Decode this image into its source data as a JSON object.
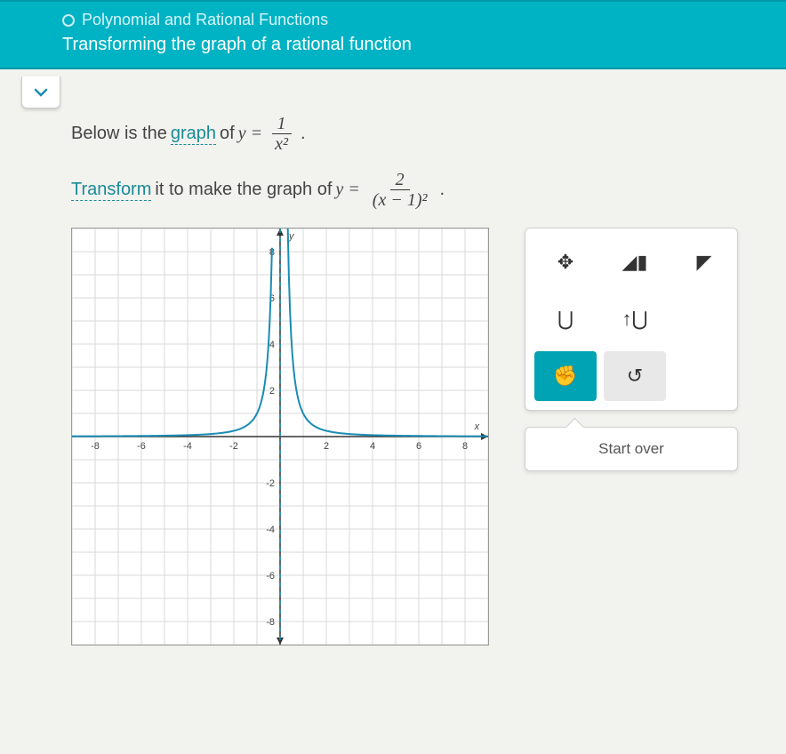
{
  "header": {
    "breadcrumb": "Polynomial and Rational Functions",
    "title": "Transforming the graph of a rational function",
    "accent_color": "#00b3c4"
  },
  "prompt": {
    "line1_pre": "Below is the ",
    "line1_link": "graph",
    "line1_mid": " of ",
    "eq1_lhs": "y =",
    "eq1_num": "1",
    "eq1_den": "x²",
    "line1_end": ".",
    "line2_link": "Transform",
    "line2_mid": " it to make the graph of ",
    "eq2_lhs": "y =",
    "eq2_num": "2",
    "eq2_den": "(x − 1)²",
    "line2_end": "."
  },
  "graph": {
    "xmin": -9,
    "xmax": 9,
    "ymin": -9,
    "ymax": 9,
    "xticks": [
      -8,
      -6,
      -4,
      -2,
      2,
      4,
      6,
      8
    ],
    "yticks": [
      -8,
      -6,
      -4,
      -2,
      2,
      4,
      6,
      8
    ],
    "grid_color": "#d9d9d9",
    "axis_color": "#333333",
    "curve_color": "#1a8cb3",
    "x_axis_label": "x",
    "y_axis_label": "y",
    "asymptote_x": 0
  },
  "toolbox": {
    "tools": [
      {
        "name": "move",
        "glyph": "✥",
        "selected": false
      },
      {
        "name": "asymptote",
        "glyph": "◢▮",
        "selected": false
      },
      {
        "name": "fill",
        "glyph": "◤",
        "selected": false
      },
      {
        "name": "curve-down",
        "glyph": "⋃",
        "selected": false
      },
      {
        "name": "curve-updown",
        "glyph": "↑⋃",
        "selected": false
      },
      {
        "name": "blank1",
        "glyph": "",
        "selected": false
      },
      {
        "name": "drag-hand",
        "glyph": "✊",
        "selected": true
      },
      {
        "name": "undo",
        "glyph": "↺",
        "selected": false,
        "light": true
      },
      {
        "name": "blank2",
        "glyph": "",
        "selected": false
      }
    ],
    "start_over": "Start over"
  }
}
